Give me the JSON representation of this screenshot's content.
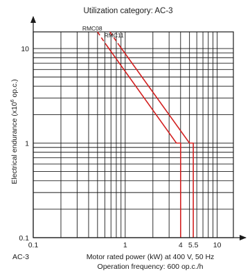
{
  "chart_data": {
    "type": "line",
    "title": "Utilization category: AC-3",
    "xlabel": "Motor rated power (kW) at 400 V, 50 Hz",
    "xlabel2": "Operation frequency: 600 op.c./h",
    "ylabel_main": "Electrical endurance (x10",
    "ylabel_sup": "6",
    "ylabel_end": " op.c.)",
    "corner_label": "AC-3",
    "x_scale": "log",
    "y_scale": "log",
    "xlim": [
      0.1,
      15
    ],
    "ylim": [
      0.1,
      15
    ],
    "grid": true,
    "x_ticks": [
      {
        "value": 0.1,
        "label": "0.1"
      },
      {
        "value": 1,
        "label": "1"
      },
      {
        "value": 4,
        "label": "4"
      },
      {
        "value": 5.5,
        "label": "5.5"
      },
      {
        "value": 10,
        "label": "10"
      }
    ],
    "y_ticks": [
      {
        "value": 0.1,
        "label": "0.1"
      },
      {
        "value": 1,
        "label": "1"
      },
      {
        "value": 10,
        "label": "10"
      }
    ],
    "series": [
      {
        "name": "RMC08",
        "color": "#d21f1f",
        "dashed": [
          [
            0.5,
            15
          ],
          [
            0.62,
            11
          ]
        ],
        "points": [
          [
            0.62,
            11
          ],
          [
            3.6,
            1.0
          ],
          [
            4.0,
            1.0
          ],
          [
            4.0,
            0.1
          ]
        ]
      },
      {
        "name": "RMC11",
        "color": "#d21f1f",
        "dashed": [
          [
            0.68,
            15
          ],
          [
            0.85,
            11
          ]
        ],
        "points": [
          [
            0.85,
            11
          ],
          [
            5.0,
            1.0
          ],
          [
            5.5,
            1.0
          ],
          [
            5.5,
            0.1
          ]
        ]
      }
    ]
  }
}
